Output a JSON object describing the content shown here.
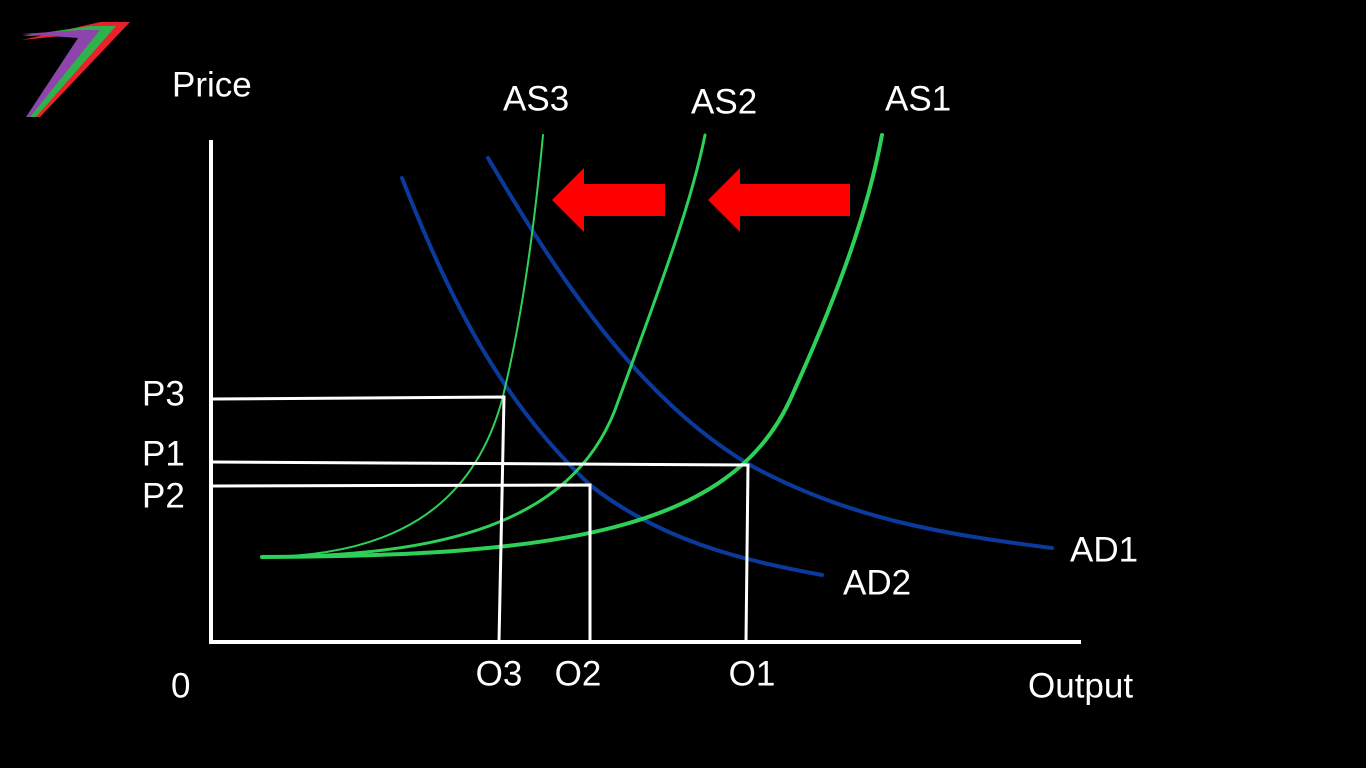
{
  "axes": {
    "y_label": "Price",
    "x_label": "Output",
    "origin": "0"
  },
  "curves": {
    "as3": "AS3",
    "as2": "AS2",
    "as1": "AS1",
    "ad1": "AD1",
    "ad2": "AD2"
  },
  "price_levels": [
    "P3",
    "P1",
    "P2"
  ],
  "output_levels": [
    "O3",
    "O2",
    "O1"
  ]
}
